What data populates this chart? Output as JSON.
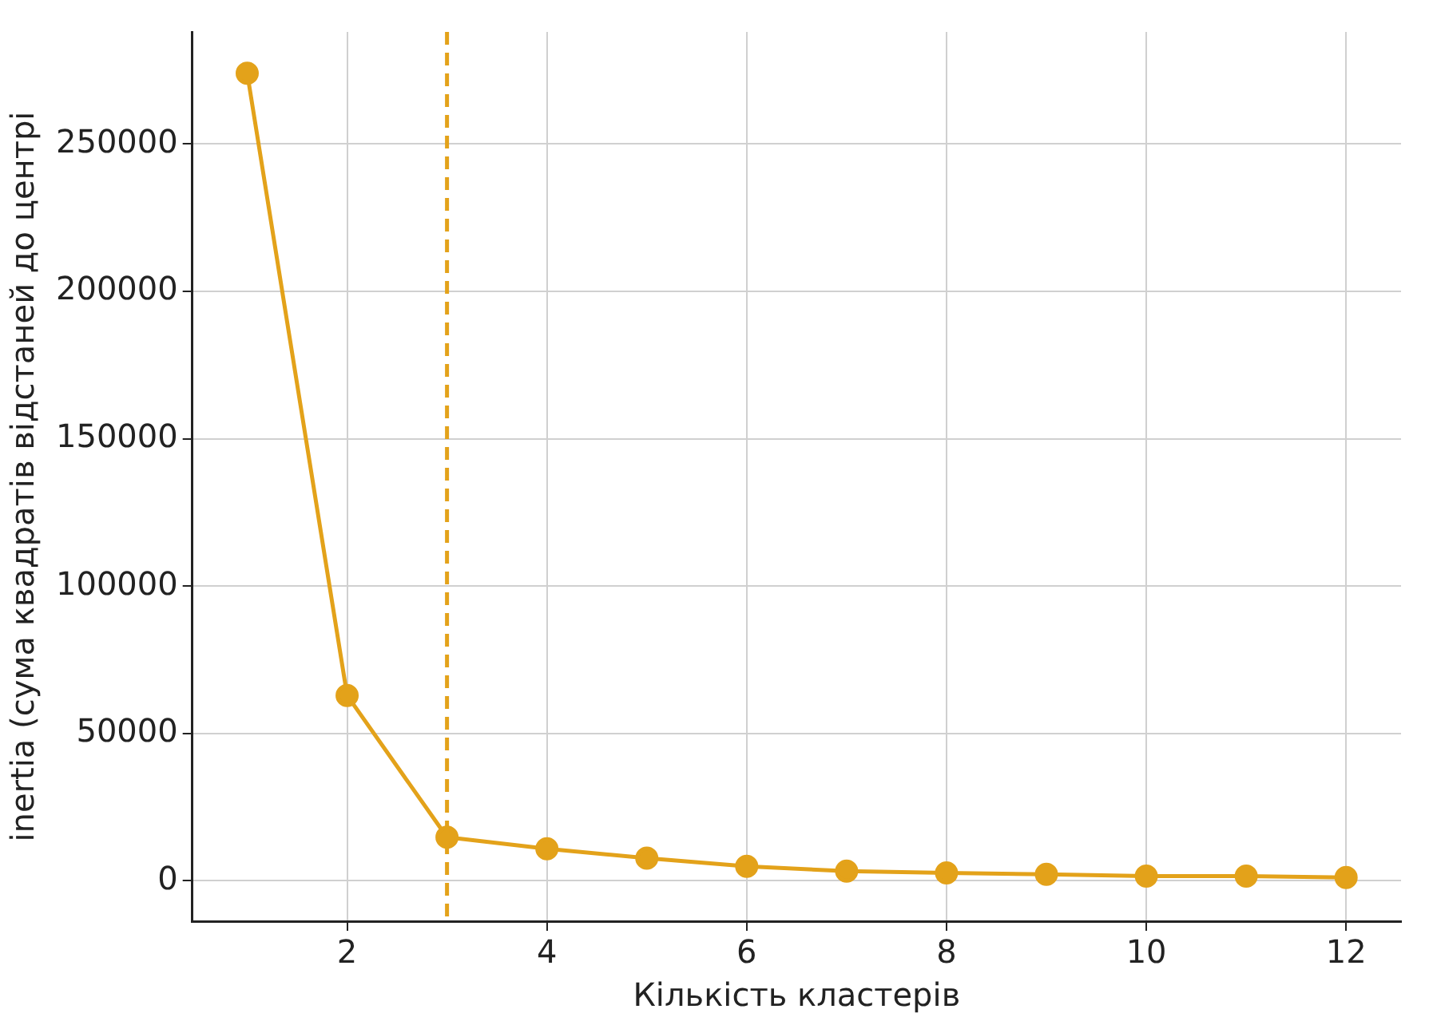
{
  "chart_data": {
    "type": "line",
    "xlabel": "Кількість кластерів",
    "ylabel": "inertia (сума квадратів відстаней до центрі",
    "x": [
      1,
      2,
      3,
      4,
      5,
      6,
      7,
      8,
      9,
      10,
      11,
      12
    ],
    "series": [
      {
        "color": "#e3a21a",
        "values": [
          274000,
          62900,
          14800,
          10900,
          7700,
          4900,
          3300,
          2700,
          2200,
          1600,
          1600,
          1100
        ]
      }
    ],
    "xlim": [
      0.45,
      12.55
    ],
    "xticks": [
      2,
      4,
      6,
      8,
      10,
      12
    ],
    "ylim": [
      -13700,
      288000
    ],
    "yticks": [
      0,
      50000,
      100000,
      150000,
      200000,
      250000
    ],
    "ref_lines": [
      {
        "axis": "x",
        "value": 3,
        "color": "#e3a21a",
        "line_style": "dashed"
      }
    ],
    "grid": true,
    "marker": "circle",
    "line_style": "solid",
    "legend": false
  }
}
